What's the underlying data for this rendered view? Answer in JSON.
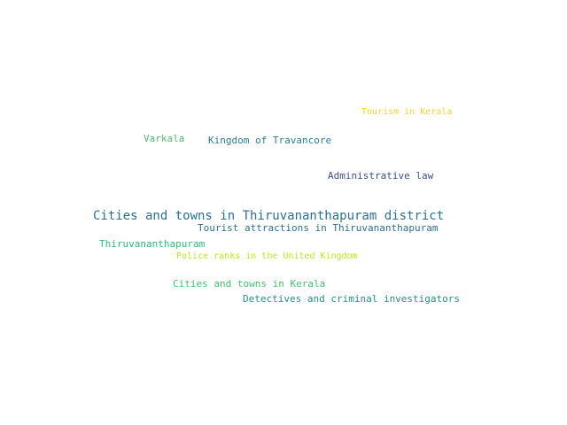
{
  "words": [
    {
      "text": "Tourism in Kerala",
      "color": "#f5d327"
    },
    {
      "text": "Varkala",
      "color": "#4cc26c"
    },
    {
      "text": "Kingdom of Travancore",
      "color": "#2a7f8e"
    },
    {
      "text": "Administrative law",
      "color": "#3d4e8a"
    },
    {
      "text": "Cities and towns in Thiruvananthapuram district",
      "color": "#2c718e"
    },
    {
      "text": "Tourist attractions in Thiruvananthapuram",
      "color": "#2e6f8e"
    },
    {
      "text": "Thiruvananthapuram",
      "color": "#35b779"
    },
    {
      "text": "Police ranks in the United Kingdom",
      "color": "#c8e020"
    },
    {
      "text": "Cities and towns in Kerala",
      "color": "#44bf70"
    },
    {
      "text": "Detectives and criminal investigators",
      "color": "#21918c"
    }
  ]
}
